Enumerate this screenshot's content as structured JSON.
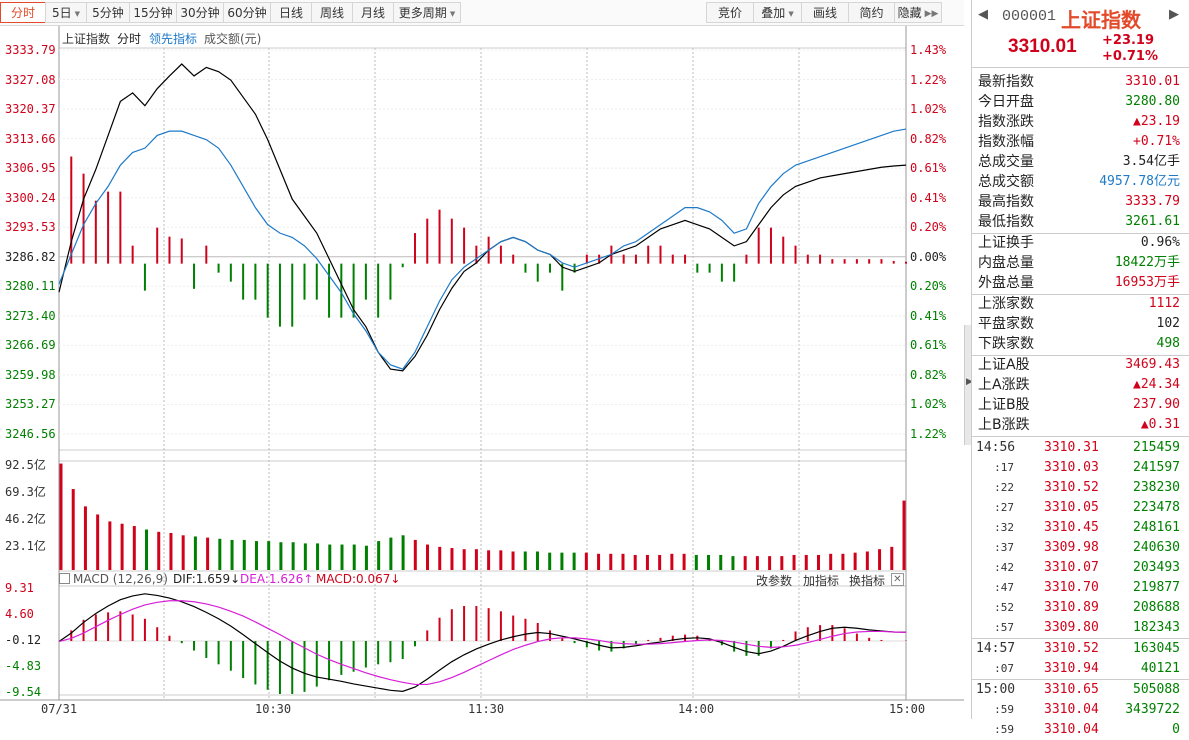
{
  "toolbar": {
    "left": [
      {
        "label": "分时",
        "active": true,
        "arrow": false
      },
      {
        "label": "5日",
        "active": false,
        "arrow": true
      },
      {
        "label": "5分钟",
        "active": false,
        "arrow": false
      },
      {
        "label": "15分钟",
        "active": false,
        "arrow": false
      },
      {
        "label": "30分钟",
        "active": false,
        "arrow": false
      },
      {
        "label": "60分钟",
        "active": false,
        "arrow": false
      },
      {
        "label": "日线",
        "active": false,
        "arrow": false
      },
      {
        "label": "周线",
        "active": false,
        "arrow": false
      },
      {
        "label": "月线",
        "active": false,
        "arrow": false
      },
      {
        "label": "更多周期",
        "active": false,
        "arrow": true
      }
    ],
    "right": [
      {
        "label": "竞价",
        "arrow": false
      },
      {
        "label": "叠加",
        "arrow": true
      },
      {
        "label": "画线",
        "arrow": false
      },
      {
        "label": "简约",
        "arrow": false
      },
      {
        "label": "隐藏",
        "arrow": false,
        "icon": "double-chevron-right"
      }
    ]
  },
  "price_header": {
    "name": "上证指数",
    "mode": "分时",
    "leading": "领先指标",
    "volume_label": "成交额(元)"
  },
  "macd_header": {
    "title": "MACD (12,26,9)",
    "dif": "DIF:1.659↓",
    "dea": "DEA:1.626↑",
    "macd": "MACD:0.067↓",
    "links": [
      "改参数",
      "加指标",
      "换指标"
    ]
  },
  "colors": {
    "up": "#d0021b",
    "down": "#008000",
    "index_line": "#000000",
    "lead_line": "#1e7ac8",
    "dea_line": "#d81ed8"
  },
  "chart_data": [
    {
      "type": "line",
      "title": "上证指数 分时",
      "y_ticks": [
        "3333.79",
        "3327.08",
        "3320.37",
        "3313.66",
        "3306.95",
        "3300.24",
        "3293.53",
        "3286.82",
        "3280.11",
        "3273.40",
        "3266.69",
        "3259.98",
        "3253.27",
        "3246.56"
      ],
      "y_pct_ticks": [
        "1.43%",
        "1.22%",
        "1.02%",
        "0.82%",
        "0.61%",
        "0.41%",
        "0.20%",
        "0.00%",
        "0.20%",
        "0.41%",
        "0.61%",
        "0.82%",
        "1.02%",
        "1.22%"
      ],
      "ylim": [
        3243.2,
        3337.1
      ],
      "prev_close": 3286.82,
      "x_ticks": [
        "07/31",
        "10:30",
        "11:30",
        "14:00",
        "15:00"
      ],
      "series": [
        {
          "name": "上证指数",
          "values": [
            3280.1,
            3292,
            3302,
            3309,
            3317,
            3325,
            3327,
            3324,
            3328,
            3331,
            3333.8,
            3331,
            3333,
            3332,
            3330,
            3326,
            3322,
            3316,
            3309,
            3302,
            3298,
            3294,
            3288,
            3282,
            3276,
            3272,
            3266,
            3262,
            3261.6,
            3265,
            3270,
            3276,
            3281,
            3285,
            3287,
            3290,
            3292,
            3293,
            3292,
            3290,
            3289,
            3286,
            3285,
            3286,
            3287,
            3289,
            3290,
            3291,
            3293,
            3295,
            3296,
            3297,
            3296,
            3295,
            3293,
            3291,
            3292,
            3296,
            3300,
            3303,
            3305,
            3306,
            3307,
            3307.5,
            3308,
            3308.5,
            3309,
            3309.5,
            3309.8,
            3310.01
          ]
        },
        {
          "name": "领先指标",
          "values": [
            3282,
            3289,
            3296,
            3301,
            3305,
            3310,
            3313,
            3314,
            3317,
            3318,
            3318,
            3317,
            3316,
            3314,
            3310,
            3305,
            3300,
            3296,
            3294,
            3293,
            3291,
            3288,
            3284,
            3280,
            3275,
            3271,
            3266,
            3263,
            3262,
            3266,
            3272,
            3278,
            3283,
            3286,
            3288,
            3290,
            3292,
            3293,
            3292,
            3290,
            3289,
            3287,
            3286,
            3287,
            3288,
            3289,
            3291,
            3292,
            3294,
            3296,
            3298,
            3300,
            3300,
            3299,
            3297,
            3294,
            3295,
            3301,
            3305,
            3308,
            3310,
            3311,
            3312,
            3313,
            3314,
            3315,
            3316,
            3317,
            3318,
            3318.5
          ]
        }
      ]
    },
    {
      "type": "bar",
      "title": "成交额",
      "y_ticks": [
        "92.5亿",
        "69.3亿",
        "46.2亿",
        "23.1亿"
      ],
      "ylim": [
        0,
        92.5
      ],
      "values": [
        92,
        70,
        55,
        48,
        42,
        40,
        38,
        35,
        33,
        32,
        30,
        29,
        28,
        27,
        26,
        26,
        25,
        25,
        24,
        24,
        23,
        23,
        22,
        22,
        22,
        21,
        25,
        28,
        30,
        26,
        22,
        20,
        19,
        18,
        18,
        17,
        17,
        16,
        16,
        16,
        15,
        15,
        15,
        15,
        14,
        14,
        14,
        13,
        13,
        13,
        14,
        14,
        13,
        13,
        13,
        12,
        12,
        12,
        12,
        12,
        13,
        13,
        13,
        14,
        14,
        15,
        16,
        18,
        20,
        60
      ]
    },
    {
      "type": "line",
      "title": "MACD (12,26,9)",
      "y_ticks": [
        "9.31",
        "4.60",
        "-0.12",
        "-4.83",
        "-9.54"
      ],
      "ylim": [
        -10,
        10
      ],
      "series": [
        {
          "name": "DIF",
          "values": [
            -0.1,
            1.5,
            3.5,
            5.2,
            6.6,
            7.8,
            8.5,
            8.9,
            8.6,
            8.1,
            7.4,
            6.5,
            5.4,
            4.2,
            2.8,
            1.2,
            -0.5,
            -2.2,
            -3.8,
            -5.1,
            -6.1,
            -6.8,
            -7.2,
            -7.6,
            -8.1,
            -8.5,
            -8.9,
            -9.3,
            -9.5,
            -8.7,
            -7.2,
            -5.5,
            -3.9,
            -2.6,
            -1.5,
            -0.6,
            0.2,
            0.8,
            1.3,
            1.6,
            1.4,
            0.9,
            0.4,
            -0.2,
            -0.8,
            -1.3,
            -1.2,
            -0.9,
            -0.5,
            -0.2,
            0.2,
            0.5,
            0.6,
            0.4,
            -0.3,
            -1.2,
            -2.0,
            -2.4,
            -1.9,
            -1.0,
            0.1,
            1.0,
            1.8,
            2.4,
            2.6,
            2.4,
            2.1,
            1.9,
            1.7,
            1.659
          ]
        },
        {
          "name": "DEA",
          "values": [
            -0.1,
            0.5,
            1.5,
            2.7,
            3.9,
            5.0,
            6.0,
            6.8,
            7.3,
            7.6,
            7.6,
            7.4,
            7.0,
            6.4,
            5.6,
            4.7,
            3.6,
            2.4,
            1.2,
            -0.1,
            -1.3,
            -2.5,
            -3.5,
            -4.4,
            -5.2,
            -6.0,
            -6.7,
            -7.3,
            -7.8,
            -8.2,
            -8.2,
            -7.7,
            -6.9,
            -5.9,
            -4.8,
            -3.7,
            -2.6,
            -1.6,
            -0.8,
            -0.1,
            0.4,
            0.6,
            0.6,
            0.4,
            0.1,
            -0.3,
            -0.5,
            -0.6,
            -0.6,
            -0.5,
            -0.3,
            -0.1,
            0.1,
            0.2,
            0.1,
            -0.2,
            -0.6,
            -1.0,
            -1.2,
            -1.1,
            -0.8,
            -0.3,
            0.3,
            0.9,
            1.4,
            1.7,
            1.8,
            1.8,
            1.7,
            1.626
          ]
        }
      ]
    }
  ],
  "quote": {
    "code": "000001",
    "name": "上证指数",
    "price": "3310.01",
    "change": "+23.19",
    "pct": "+0.71%"
  },
  "stats": [
    {
      "k": "最新指数",
      "v": "3310.01",
      "c": "red"
    },
    {
      "k": "今日开盘",
      "v": "3280.80",
      "c": "grn"
    },
    {
      "k": "指数涨跌",
      "v": "▲23.19",
      "c": "red"
    },
    {
      "k": "指数涨幅",
      "v": "+0.71%",
      "c": "red"
    },
    {
      "k": "总成交量",
      "v": "3.54亿手",
      "c": "blk"
    },
    {
      "k": "总成交额",
      "v": "4957.78亿元",
      "c": "blue"
    },
    {
      "k": "最高指数",
      "v": "3333.79",
      "c": "red"
    },
    {
      "k": "最低指数",
      "v": "3261.61",
      "c": "grn"
    },
    {
      "k": "上证换手",
      "v": "0.96%",
      "c": "blk"
    },
    {
      "k": "内盘总量",
      "v": "18422万手",
      "c": "grn"
    },
    {
      "k": "外盘总量",
      "v": "16953万手",
      "c": "red"
    },
    {
      "k": "上涨家数",
      "v": "1112",
      "c": "red"
    },
    {
      "k": "平盘家数",
      "v": "102",
      "c": "blk"
    },
    {
      "k": "下跌家数",
      "v": "498",
      "c": "grn"
    },
    {
      "k": "上证A股",
      "v": "3469.43",
      "c": "red"
    },
    {
      "k": "上A涨跌",
      "v": "▲24.34",
      "c": "red"
    },
    {
      "k": "上证B股",
      "v": "237.90",
      "c": "red"
    },
    {
      "k": "上B涨跌",
      "v": "▲0.31",
      "c": "red"
    }
  ],
  "ticks": [
    {
      "t": "14:56",
      "p": "3310.31",
      "q": "215459",
      "hd": true
    },
    {
      "t": ":17",
      "p": "3310.03",
      "q": "241597"
    },
    {
      "t": ":22",
      "p": "3310.52",
      "q": "238230"
    },
    {
      "t": ":27",
      "p": "3310.05",
      "q": "223478"
    },
    {
      "t": ":32",
      "p": "3310.45",
      "q": "248161"
    },
    {
      "t": ":37",
      "p": "3309.98",
      "q": "240630"
    },
    {
      "t": ":42",
      "p": "3310.07",
      "q": "203493"
    },
    {
      "t": ":47",
      "p": "3310.70",
      "q": "219877"
    },
    {
      "t": ":52",
      "p": "3310.89",
      "q": "208688"
    },
    {
      "t": ":57",
      "p": "3309.80",
      "q": "182343"
    },
    {
      "t": "14:57",
      "p": "3310.52",
      "q": "163045",
      "hd": true
    },
    {
      "t": ":07",
      "p": "3310.94",
      "q": "40121"
    },
    {
      "t": "15:00",
      "p": "3310.65",
      "q": "505088",
      "hd": true
    },
    {
      "t": ":59",
      "p": "3310.04",
      "q": "3439722"
    },
    {
      "t": ":59",
      "p": "3310.04",
      "q": "0"
    }
  ]
}
